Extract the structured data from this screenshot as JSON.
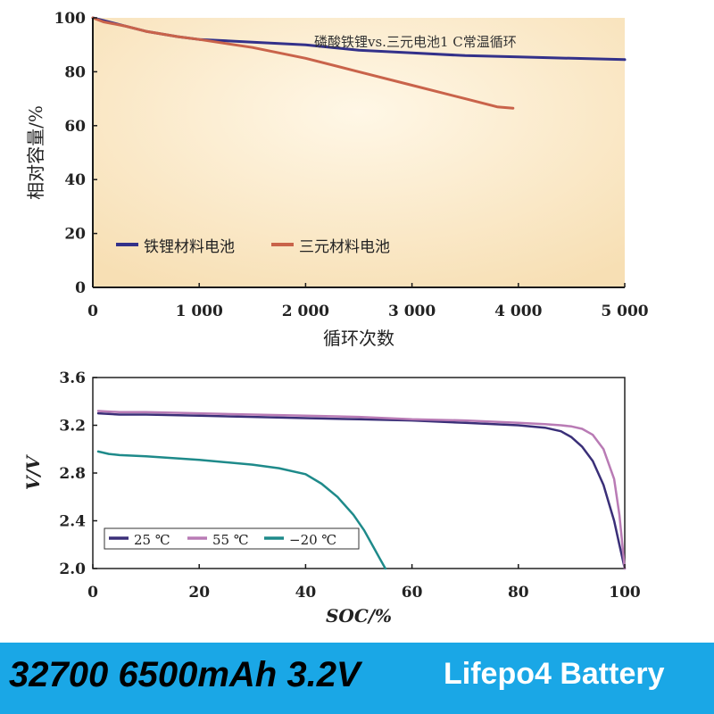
{
  "chart_data": [
    {
      "type": "line",
      "title": "磷酸铁锂vs.三元电池1 C常温循环",
      "xlabel": "循环次数",
      "ylabel": "相对容量/%",
      "xlim": [
        0,
        5000
      ],
      "ylim": [
        0,
        100
      ],
      "xticks": [
        "0",
        "1 000",
        "2 000",
        "3 000",
        "4 000",
        "5 000"
      ],
      "yticks": [
        "0",
        "20",
        "40",
        "60",
        "80",
        "100"
      ],
      "grid": false,
      "legend": "bottom-left",
      "series": [
        {
          "name": "铁锂材料电池",
          "color": "#33318a",
          "x": [
            0,
            100,
            300,
            500,
            800,
            1000,
            1500,
            2000,
            2500,
            3000,
            3500,
            4000,
            4500,
            5000
          ],
          "y": [
            100,
            99,
            97,
            95,
            93,
            92,
            91,
            90,
            88,
            87,
            86,
            85.5,
            85,
            84.5
          ]
        },
        {
          "name": "三元材料电池",
          "color": "#c9634a",
          "x": [
            0,
            100,
            300,
            500,
            800,
            1000,
            1500,
            2000,
            2500,
            3000,
            3500,
            3800,
            3950
          ],
          "y": [
            100,
            98.5,
            97,
            95,
            93,
            92,
            89,
            85,
            80,
            75,
            70,
            67,
            66.5
          ]
        }
      ]
    },
    {
      "type": "line",
      "title": "",
      "xlabel": "SOC/%",
      "ylabel": "V/V",
      "xlim": [
        0,
        100
      ],
      "ylim": [
        2.0,
        3.6
      ],
      "xticks": [
        "0",
        "20",
        "40",
        "60",
        "80",
        "100"
      ],
      "yticks": [
        "2.0",
        "2.4",
        "2.8",
        "3.2",
        "3.6"
      ],
      "grid": false,
      "legend": "bottom-left",
      "series": [
        {
          "name": "25 ℃",
          "color": "#3a2f78",
          "x": [
            1,
            5,
            10,
            20,
            30,
            40,
            50,
            60,
            70,
            80,
            85,
            88,
            90,
            92,
            94,
            96,
            97,
            98,
            99,
            100
          ],
          "y": [
            3.3,
            3.29,
            3.29,
            3.28,
            3.27,
            3.26,
            3.25,
            3.24,
            3.22,
            3.2,
            3.18,
            3.15,
            3.1,
            3.02,
            2.9,
            2.7,
            2.55,
            2.4,
            2.2,
            2.0
          ]
        },
        {
          "name": "55 ℃",
          "color": "#b97bb5",
          "x": [
            1,
            5,
            10,
            20,
            30,
            40,
            50,
            60,
            70,
            80,
            85,
            88,
            90,
            92,
            94,
            96,
            98,
            99,
            100
          ],
          "y": [
            3.32,
            3.31,
            3.31,
            3.3,
            3.29,
            3.28,
            3.27,
            3.25,
            3.24,
            3.22,
            3.21,
            3.2,
            3.19,
            3.17,
            3.12,
            3.0,
            2.75,
            2.45,
            2.0
          ]
        },
        {
          "name": "−20 ℃",
          "color": "#1e8a8a",
          "x": [
            1,
            3,
            5,
            10,
            20,
            30,
            35,
            40,
            43,
            46,
            49,
            51,
            53,
            54,
            55
          ],
          "y": [
            2.98,
            2.96,
            2.95,
            2.94,
            2.91,
            2.87,
            2.84,
            2.79,
            2.71,
            2.6,
            2.45,
            2.32,
            2.16,
            2.08,
            2.0
          ]
        }
      ]
    }
  ],
  "banner": {
    "left_text": "32700 6500mAh 3.2V",
    "right_text": "Lifepo4 Battery",
    "background": "#1aa7e6"
  }
}
